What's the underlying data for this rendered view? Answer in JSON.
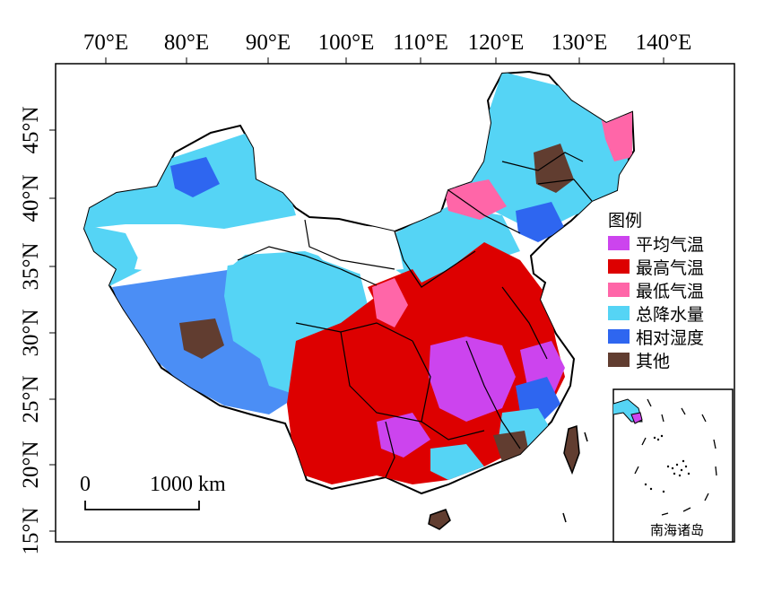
{
  "map": {
    "lon_labels": [
      "70°E",
      "80°E",
      "90°E",
      "100°E",
      "110°E",
      "120°E",
      "130°E",
      "140°E"
    ],
    "lat_labels": [
      "15°N",
      "20°N",
      "25°N",
      "30°N",
      "35°N",
      "40°N",
      "45°N"
    ],
    "legend": {
      "title": "图例",
      "items": [
        {
          "label": "平均气温",
          "color": "#cc44ee"
        },
        {
          "label": "最高气温",
          "color": "#dd0000"
        },
        {
          "label": "最低气温",
          "color": "#ff66a8"
        },
        {
          "label": "总降水量",
          "color": "#55d4f5"
        },
        {
          "label": "相对湿度",
          "color": "#2e66f0"
        },
        {
          "label": "其他",
          "color": "#613d30"
        }
      ]
    },
    "scale_bar": {
      "zero": "0",
      "distance": "1000 km"
    },
    "inset_label": "南海诸岛"
  }
}
